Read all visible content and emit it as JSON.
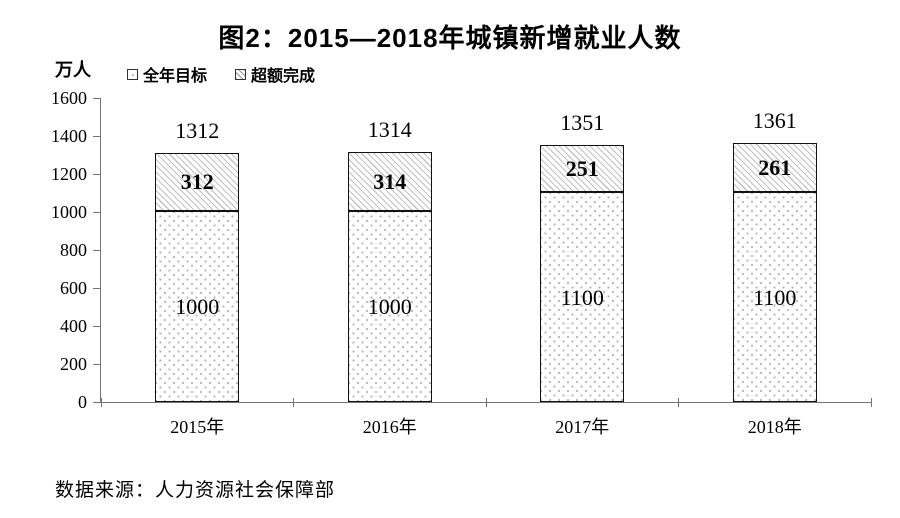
{
  "chart_data": {
    "type": "bar",
    "stacked": true,
    "title": "图2：2015—2018年城镇新增就业人数",
    "y_unit": "万人",
    "categories": [
      "2015年",
      "2016年",
      "2017年",
      "2018年"
    ],
    "series": [
      {
        "name": "全年目标",
        "pattern": "dots",
        "values": [
          1000,
          1000,
          1100,
          1100
        ]
      },
      {
        "name": "超额完成",
        "pattern": "diagonal-hatch",
        "values": [
          312,
          314,
          251,
          261
        ]
      }
    ],
    "totals": [
      1312,
      1314,
      1351,
      1361
    ],
    "ylim": [
      0,
      1600
    ],
    "y_tick_step": 200,
    "y_tick_labels": [
      "0",
      "200",
      "400",
      "600",
      "800",
      "1000",
      "1200",
      "1400",
      "1600"
    ],
    "grid": false,
    "legend_position": "top-left",
    "source": "数据来源：人力资源社会保障部",
    "colors": {
      "background": "#ffffff",
      "text": "#000000",
      "axis": "#757575",
      "bar_border": "#121212",
      "hatch_line": "#c2c2c2",
      "dot": "#b5b5b5"
    }
  }
}
